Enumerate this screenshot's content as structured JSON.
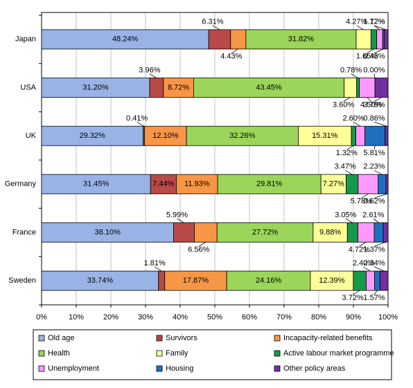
{
  "chart_data": {
    "type": "stacked-barh",
    "categories": [
      "Japan",
      "USA",
      "UK",
      "Germany",
      "France",
      "Sweden"
    ],
    "series": [
      {
        "name": "Old age",
        "color": "#99b3e6",
        "values": [
          48.24,
          31.2,
          29.32,
          31.45,
          38.1,
          33.74
        ],
        "value_labels": [
          "48.24%",
          "31.20%",
          "29.32%",
          "31.45%",
          "38.10%",
          "33.74%"
        ]
      },
      {
        "name": "Survivors",
        "color": "#b84a47",
        "values": [
          6.31,
          3.96,
          0.41,
          7.44,
          5.99,
          1.81
        ],
        "value_labels": [
          "6.31%",
          "3.96%",
          "0.41%",
          "7.44%",
          "5.99%",
          "1.81%"
        ]
      },
      {
        "name": "Incapacity-related benefits",
        "color": "#f79646",
        "values": [
          4.43,
          8.72,
          12.1,
          11.93,
          6.56,
          17.87
        ],
        "value_labels": [
          "4.43%",
          "8.72%",
          "12.10%",
          "11.93%",
          "6.56%",
          "17.87%"
        ]
      },
      {
        "name": "Health",
        "color": "#9bd55a",
        "values": [
          31.82,
          43.45,
          32.26,
          29.81,
          27.72,
          24.16
        ],
        "value_labels": [
          "31.82%",
          "43.45%",
          "32.26%",
          "29.81%",
          "27.72%",
          "24.16%"
        ]
      },
      {
        "name": "Family",
        "color": "#ffff99",
        "values": [
          4.27,
          3.6,
          15.31,
          7.27,
          9.88,
          12.39
        ],
        "value_labels": [
          "4.27%",
          "3.60%",
          "15.31%",
          "7.27%",
          "9.88%",
          "12.39%"
        ]
      },
      {
        "name": "Active labour market programme",
        "color": "#17994a",
        "values": [
          1.65,
          0.78,
          1.32,
          3.47,
          3.05,
          3.72
        ],
        "value_labels": [
          "1.65%",
          "0.78%",
          "1.32%",
          "3.47%",
          "3.05%",
          "3.72%"
        ]
      },
      {
        "name": "Unemployment",
        "color": "#ff99ff",
        "values": [
          1.72,
          4.5,
          2.6,
          5.78,
          4.72,
          2.4
        ],
        "value_labels": [
          "1.72%",
          "4.50%",
          "2.60%",
          "5.78%",
          "4.72%",
          "2.40%"
        ]
      },
      {
        "name": "Housing",
        "color": "#1f6fc0",
        "values": [
          0.43,
          0.0,
          5.81,
          2.23,
          2.61,
          1.57
        ],
        "value_labels": [
          "0.43%",
          "0.00%",
          "5.81%",
          "2.23%",
          "2.61%",
          "1.57%"
        ]
      },
      {
        "name": "Other policy areas",
        "color": "#7030a0",
        "values": [
          1.12,
          3.78,
          0.86,
          0.62,
          1.37,
          2.34
        ],
        "value_labels": [
          "1.12%",
          "3.78%",
          "0.86%",
          "0.62%",
          "1.37%",
          "2.34%"
        ]
      }
    ],
    "xlim": [
      0,
      100
    ],
    "xticks": [
      {
        "value": 0,
        "label": "0%"
      },
      {
        "value": 10,
        "label": "10%"
      },
      {
        "value": 20,
        "label": "20%"
      },
      {
        "value": 30,
        "label": "30%"
      },
      {
        "value": 40,
        "label": "40%"
      },
      {
        "value": 50,
        "label": "50%"
      },
      {
        "value": 60,
        "label": "60%"
      },
      {
        "value": 70,
        "label": "70%"
      },
      {
        "value": 80,
        "label": "80%"
      },
      {
        "value": 90,
        "label": "90%"
      },
      {
        "value": 100,
        "label": "100%"
      }
    ],
    "grid": true,
    "legend": "bottom"
  }
}
